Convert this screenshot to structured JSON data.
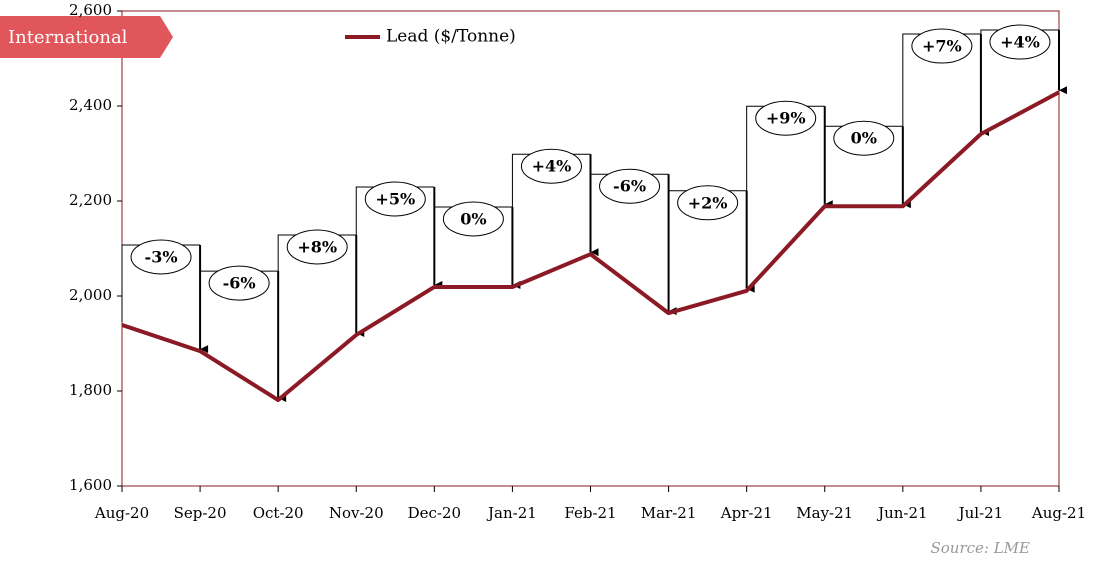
{
  "chart_data": {
    "type": "line",
    "badge": "International",
    "categories": [
      "Aug-20",
      "Sep-20",
      "Oct-20",
      "Nov-20",
      "Dec-20",
      "Jan-21",
      "Feb-21",
      "Mar-21",
      "Apr-21",
      "May-21",
      "Jun-21",
      "Jul-21",
      "Aug-21"
    ],
    "series": [
      {
        "name": "Lead ($/Tonne)",
        "color": "#8b1a24",
        "values": [
          1939,
          1884,
          1781,
          1918,
          2019,
          2019,
          2088,
          1964,
          2011,
          2189,
          2189,
          2341,
          2429
        ]
      }
    ],
    "change_labels": [
      "-3%",
      "-6%",
      "+8%",
      "+5%",
      "0%",
      "+4%",
      "-6%",
      "+2%",
      "+9%",
      "0%",
      "+7%",
      "+4%"
    ],
    "ylim": [
      1600,
      2600
    ],
    "yticks": [
      {
        "value": 1600,
        "label": "1,600"
      },
      {
        "value": 1800,
        "label": "1,800"
      },
      {
        "value": 2000,
        "label": "2,000"
      },
      {
        "value": 2200,
        "label": "2,200"
      },
      {
        "value": 2400,
        "label": "2,400"
      },
      {
        "value": 2600,
        "label": "2,600"
      }
    ],
    "source": "Source: LME"
  }
}
